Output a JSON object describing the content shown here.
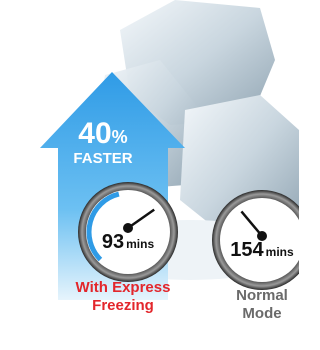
{
  "badge": {
    "value": 40,
    "unit": "%",
    "label": "FASTER"
  },
  "gauges": [
    {
      "value": 93,
      "unit": "mins",
      "label_lines": [
        "With Express",
        "Freezing"
      ],
      "color": "#e3262b"
    },
    {
      "value": 154,
      "unit": "mins",
      "label_lines": [
        "Normal",
        "Mode"
      ],
      "color": "#6a6a6a"
    }
  ]
}
